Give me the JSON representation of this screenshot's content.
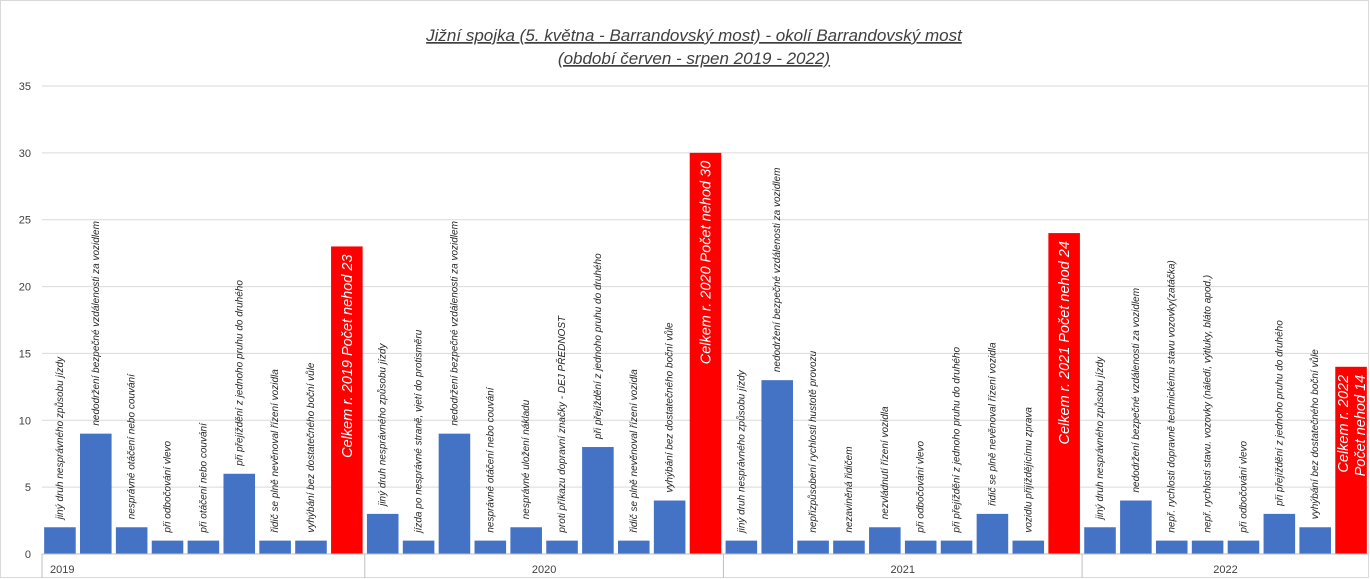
{
  "chart_data": {
    "type": "bar",
    "title": "Jižní spojka (5. května - Barrandovský most) - okolí Barrandovský most",
    "subtitle": "(období červen - srpen 2019 - 2022)",
    "xlabel": "",
    "ylabel": "",
    "ylim": [
      0,
      35
    ],
    "yticks": [
      0,
      5,
      10,
      15,
      20,
      25,
      30,
      35
    ],
    "grid": true,
    "legend": "none",
    "colors": {
      "normal": "#4472c4",
      "total": "#ff0000"
    },
    "groups": [
      {
        "label": "2019",
        "start_index": 0
      },
      {
        "label": "2020",
        "start_index": 9
      },
      {
        "label": "2021",
        "start_index": 19
      },
      {
        "label": "2022",
        "start_index": 29
      }
    ],
    "bars": [
      {
        "label": "jiný druh nesprávného způsobu jízdy",
        "value": 2,
        "total": false
      },
      {
        "label": "nedodržení bezpečné vzdálenosti za vozidlem",
        "value": 9,
        "total": false
      },
      {
        "label": "nesprávné otáčení nebo couvání",
        "value": 2,
        "total": false
      },
      {
        "label": "při odbočování vlevo",
        "value": 1,
        "total": false
      },
      {
        "label": "při otáčení nebo couvání",
        "value": 1,
        "total": false
      },
      {
        "label": "při přejíždění z jednoho pruhu do druhého",
        "value": 6,
        "total": false
      },
      {
        "label": "řidič se plně nevěnoval řízení vozidla",
        "value": 1,
        "total": false
      },
      {
        "label": "vyhýbání bez dostatečného boční vůle",
        "value": 1,
        "total": false
      },
      {
        "label": "Celkem r. 2019 Počet nehod 23",
        "value": 23,
        "total": true
      },
      {
        "label": "jiný druh nesprávného způsobu jízdy",
        "value": 3,
        "total": false
      },
      {
        "label": "jízda po nesprávné straně, vjetí do protisměru",
        "value": 1,
        "total": false
      },
      {
        "label": "nedodržení bezpečné vzdálenosti za vozidlem",
        "value": 9,
        "total": false
      },
      {
        "label": "nesprávné otáčení nebo couvání",
        "value": 1,
        "total": false
      },
      {
        "label": "nesprávné uložení nákladu",
        "value": 2,
        "total": false
      },
      {
        "label": "proti příkazu dopravní značky - DEJ PŘEDNOST",
        "value": 1,
        "total": false
      },
      {
        "label": "při přejíždění z jednoho pruhu do druhého",
        "value": 8,
        "total": false
      },
      {
        "label": "řidič se plně nevěnoval řízení vozidla",
        "value": 1,
        "total": false
      },
      {
        "label": "vyhýbání bez dostatečného boční vůle",
        "value": 4,
        "total": false
      },
      {
        "label": "Celkem r. 2020 Počet nehod 30",
        "value": 30,
        "total": true
      },
      {
        "label": "jiný druh nesprávného způsobu jízdy",
        "value": 1,
        "total": false
      },
      {
        "label": "nedodržení bezpečné vzdálenosti za vozidlem",
        "value": 13,
        "total": false
      },
      {
        "label": "nepřizpůsobení rychlosti hustotě provozu",
        "value": 1,
        "total": false
      },
      {
        "label": "nezaviněná řidičem",
        "value": 1,
        "total": false
      },
      {
        "label": "nezvládnutí řízení vozidla",
        "value": 2,
        "total": false
      },
      {
        "label": "při odbočování vlevo",
        "value": 1,
        "total": false
      },
      {
        "label": "při přejíždění z jednoho pruhu do druhého",
        "value": 1,
        "total": false
      },
      {
        "label": "řidič se plně nevěnoval řízení vozidla",
        "value": 3,
        "total": false
      },
      {
        "label": "vozidlu přijíždějícímu zprava",
        "value": 1,
        "total": false
      },
      {
        "label": "Celkem r. 2021 Počet nehod 24",
        "value": 24,
        "total": true
      },
      {
        "label": "jiný druh nesprávného způsobu jízdy",
        "value": 2,
        "total": false
      },
      {
        "label": "nedodržení bezpečné vzdálenosti za vozidlem",
        "value": 4,
        "total": false
      },
      {
        "label": "nepř. rychlosti dopravně technickému stavu vozovky(zatáčka)",
        "value": 1,
        "total": false
      },
      {
        "label": "nepř. rychlosti stavu. vozovky (náledí, výtluky, bláto apod.)",
        "value": 1,
        "total": false
      },
      {
        "label": "při odbočování vlevo",
        "value": 1,
        "total": false
      },
      {
        "label": "při přejíždění z jednoho pruhu do druhého",
        "value": 3,
        "total": false
      },
      {
        "label": "vyhýbání bez dostatečného boční vůle",
        "value": 2,
        "total": false
      },
      {
        "label": "Celkem r. 2022 Počet nehod 14",
        "value": 14,
        "total": true
      }
    ]
  }
}
